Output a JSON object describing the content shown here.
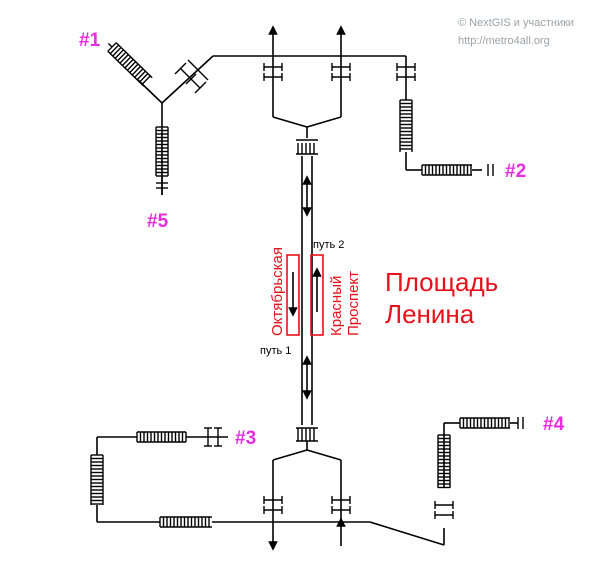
{
  "credits": {
    "line1": "© NextGIS и участники",
    "line2": "http://metro4all.org"
  },
  "station": {
    "name_line1": "Площадь",
    "name_line2": "Ленина"
  },
  "platforms": {
    "left": "Октябрьская",
    "right_line1": "Красный",
    "right_line2": "Проспект"
  },
  "tracks": {
    "track1": "путь 1",
    "track2": "путь 2"
  },
  "exits": {
    "exit1": "#1",
    "exit2": "#2",
    "exit3": "#3",
    "exit4": "#4",
    "exit5": "#5"
  },
  "colors": {
    "exit_label": "#e62ee0",
    "station_text": "#e8101a",
    "credit_text": "#9aa3aa",
    "lines": "#000000"
  },
  "icons": [
    "stairs-icon",
    "turnstile-icon",
    "direction-arrow-icon"
  ]
}
